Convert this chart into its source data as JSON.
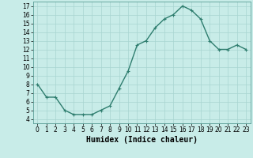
{
  "x": [
    0,
    1,
    2,
    3,
    4,
    5,
    6,
    7,
    8,
    9,
    10,
    11,
    12,
    13,
    14,
    15,
    16,
    17,
    18,
    19,
    20,
    21,
    22,
    23
  ],
  "y": [
    8.0,
    6.5,
    6.5,
    5.0,
    4.5,
    4.5,
    4.5,
    5.0,
    5.5,
    7.5,
    9.5,
    12.5,
    13.0,
    14.5,
    15.5,
    16.0,
    17.0,
    16.5,
    15.5,
    13.0,
    12.0,
    12.0,
    12.5,
    12.0
  ],
  "line_color": "#2e7d6e",
  "marker": "+",
  "marker_size": 3,
  "linewidth": 1.0,
  "bg_color": "#c8ece8",
  "grid_color": "#a8d4d0",
  "xlabel": "Humidex (Indice chaleur)",
  "xlim": [
    -0.5,
    23.5
  ],
  "ylim": [
    3.5,
    17.5
  ],
  "yticks": [
    4,
    5,
    6,
    7,
    8,
    9,
    10,
    11,
    12,
    13,
    14,
    15,
    16,
    17
  ],
  "xtick_labels": [
    "0",
    "1",
    "2",
    "3",
    "4",
    "5",
    "6",
    "7",
    "8",
    "9",
    "10",
    "11",
    "12",
    "13",
    "14",
    "15",
    "16",
    "17",
    "18",
    "19",
    "20",
    "21",
    "22",
    "23"
  ],
  "tick_fontsize": 5.5,
  "xlabel_fontsize": 7,
  "xlabel_fontweight": "bold"
}
